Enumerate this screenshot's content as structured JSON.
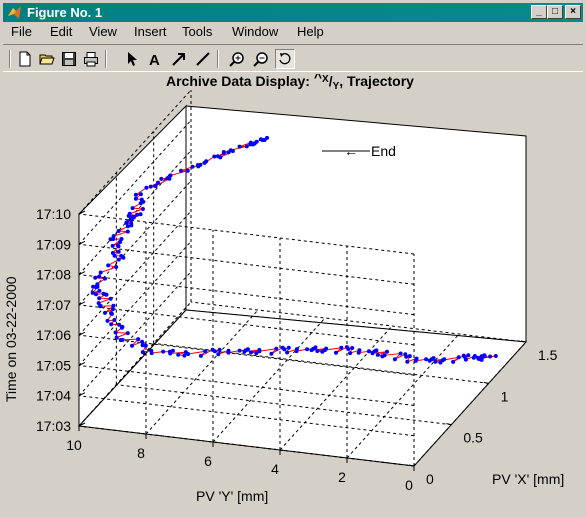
{
  "window": {
    "title": "Figure No. 1",
    "minimize_glyph": "_",
    "maximize_glyph": "□",
    "close_glyph": "×"
  },
  "menu": [
    "File",
    "Edit",
    "View",
    "Insert",
    "Tools",
    "Window",
    "Help"
  ],
  "toolbar": {
    "icons": [
      "new-file-icon",
      "open-folder-icon",
      "save-icon",
      "print-icon",
      "select-arrow-icon",
      "insert-text-icon",
      "insert-arrow-icon",
      "insert-line-icon",
      "zoom-in-icon",
      "zoom-out-icon",
      "rotate-3d-icon"
    ],
    "text_tool_glyph": "A"
  },
  "chart_data": {
    "type": "line3d",
    "title_prefix": "Archive Data Display: ",
    "title_glyph": "^",
    "title_x": "X",
    "title_slash": "/",
    "title_y": "Y",
    "title_suffix": ", Trajectory",
    "xlabel": "PV 'X' [mm]",
    "ylabel": "PV 'Y' [mm]",
    "zlabel": "Time on 03-22-2000",
    "x_ticks": [
      "0",
      "0.5",
      "1",
      "1.5"
    ],
    "y_ticks": [
      "10",
      "8",
      "6",
      "4",
      "2",
      "0"
    ],
    "z_ticks": [
      "17:03",
      "17:04",
      "17:05",
      "17:06",
      "17:07",
      "17:08",
      "17:09",
      "17:10"
    ],
    "xlim": [
      0,
      1.5
    ],
    "ylim": [
      0,
      10
    ],
    "zlim": [
      "17:03",
      "17:10"
    ],
    "grid": true,
    "line_color": "#ff0000",
    "marker_color": "#0000ff",
    "annotation": "End",
    "annotation_arrow": "←"
  }
}
